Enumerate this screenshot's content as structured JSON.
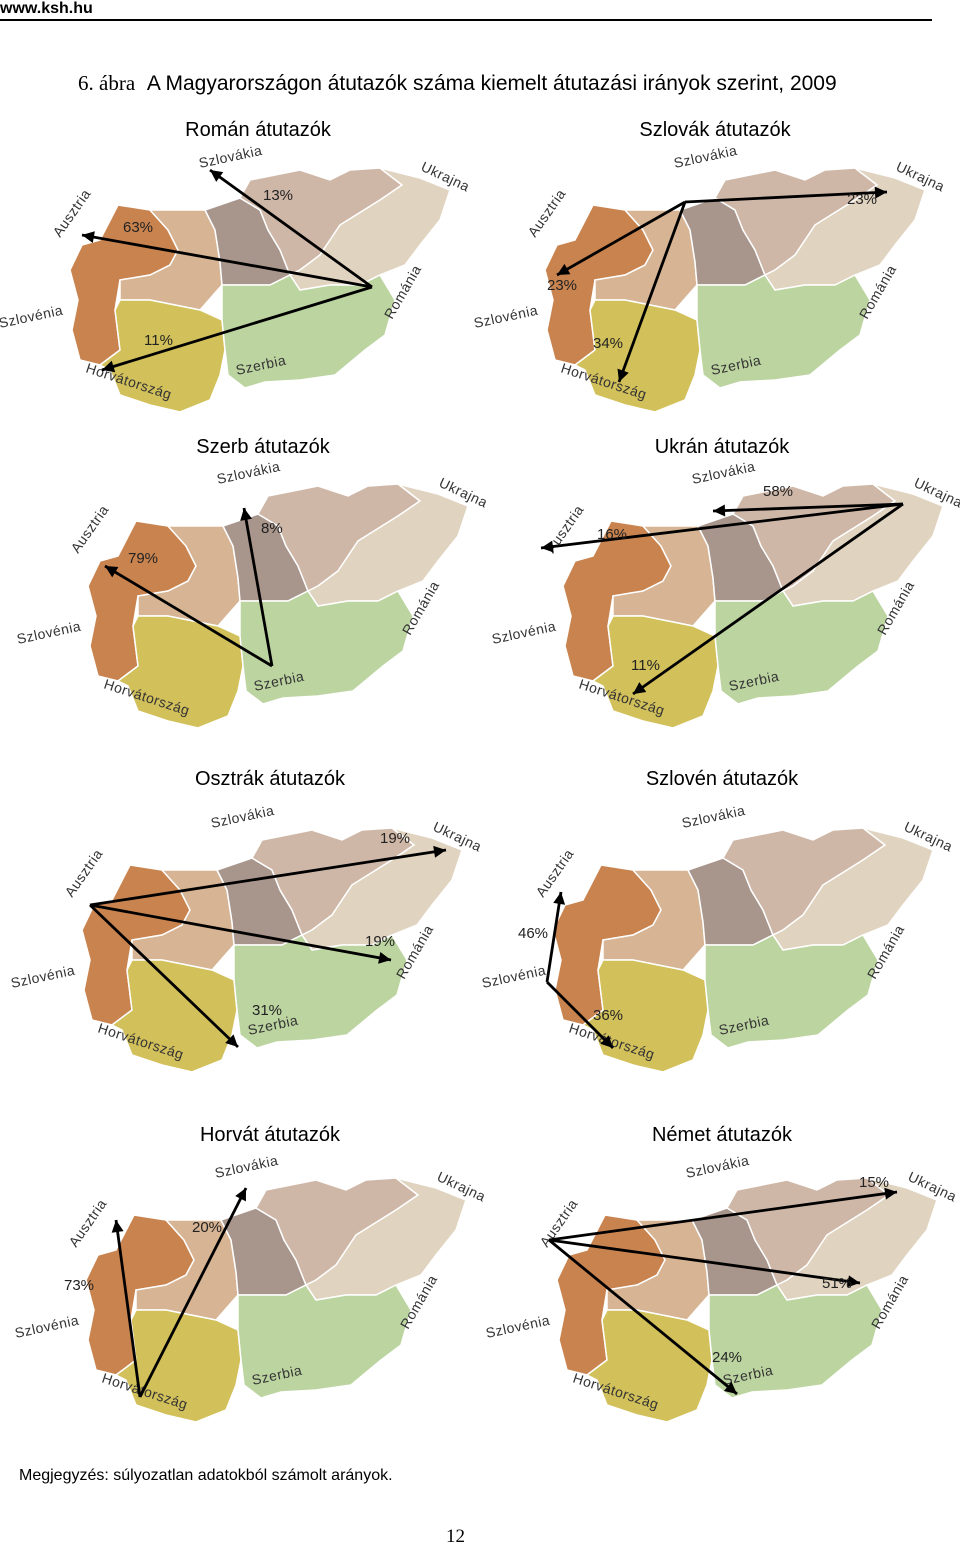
{
  "header": {
    "site": "www.ksh.hu"
  },
  "figure": {
    "number": "6. ábra",
    "title": "A Magyarországon átutazók száma kiemelt átutazási irányok szerint, 2009"
  },
  "colors": {
    "west": "#c9834f",
    "nw": "#d6b494",
    "center": "#a8958c",
    "ne": "#cfb7a8",
    "east": "#e0d3bf",
    "sw": "#d2c05a",
    "se": "#bcd4a0"
  },
  "countries": [
    "Ausztria",
    "Szlovákia",
    "Ukrajna",
    "Románia",
    "Szerbia",
    "Horvátország",
    "Szlovénia"
  ],
  "panels": [
    {
      "title": "Román átutazók",
      "arrows": [
        {
          "pct": "63%"
        },
        {
          "pct": "13%"
        },
        {
          "pct": "11%"
        }
      ]
    },
    {
      "title": "Szlovák átutazók",
      "arrows": [
        {
          "pct": "23%"
        },
        {
          "pct": "23%"
        },
        {
          "pct": "34%"
        }
      ]
    },
    {
      "title": "Szerb átutazók",
      "arrows": [
        {
          "pct": "79%"
        },
        {
          "pct": "8%"
        }
      ]
    },
    {
      "title": "Ukrán átutazók",
      "arrows": [
        {
          "pct": "16%"
        },
        {
          "pct": "58%"
        },
        {
          "pct": "11%"
        }
      ]
    },
    {
      "title": "Osztrák átutazók",
      "arrows": [
        {
          "pct": "19%"
        },
        {
          "pct": "19%"
        },
        {
          "pct": "31%"
        }
      ]
    },
    {
      "title": "Szlovén átutazók",
      "arrows": [
        {
          "pct": "46%"
        },
        {
          "pct": "36%"
        }
      ]
    },
    {
      "title": "Horvát átutazók",
      "arrows": [
        {
          "pct": "20%"
        },
        {
          "pct": "73%"
        }
      ]
    },
    {
      "title": "Német átutazók",
      "arrows": [
        {
          "pct": "15%"
        },
        {
          "pct": "51%"
        },
        {
          "pct": "24%"
        }
      ]
    }
  ],
  "note": "Megjegyzés: súlyozatlan adatokból számolt arányok.",
  "page_number": "12"
}
